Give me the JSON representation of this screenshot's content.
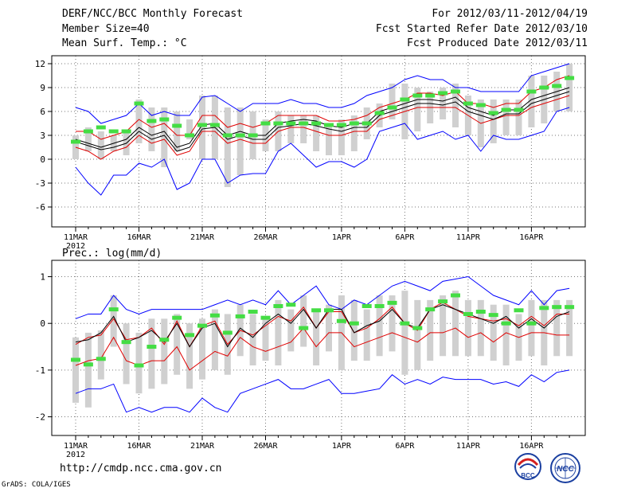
{
  "header": {
    "title": "DERF/NCC/BCC Monthly Forecast",
    "member_size": "Member Size=40",
    "variable": "Mean Surf. Temp.: °C",
    "period": "For 2012/03/11-2012/04/19",
    "started": "Fcst Started Refer Date 2012/03/10",
    "produced": "Fcst Produced Date 2012/03/11"
  },
  "footer": {
    "url": "http://cmdp.ncc.cma.gov.cn",
    "credit": "GrADS: COLA/IGES",
    "logo_bcc": "BCC",
    "logo_ncc": "NCC"
  },
  "colors": {
    "envelope": "#0000ff",
    "percentile": "#e00000",
    "mean": "#000000",
    "box": "#d0d0d0",
    "obs": "#44dd44",
    "grid": "#777777"
  },
  "chart_data": [
    {
      "type": "line",
      "title": "Mean Surf. Temp.: °C",
      "x_tick_labels": [
        "11MAR",
        "16MAR",
        "21MAR",
        "26MAR",
        "1APR",
        "6APR",
        "11APR",
        "16APR"
      ],
      "x_tick_days": [
        0,
        5,
        10,
        15,
        21,
        26,
        31,
        36
      ],
      "year_label": "2012",
      "ylim": [
        -8.5,
        13
      ],
      "yticks": [
        12,
        9,
        6,
        3,
        0,
        -3,
        -6
      ],
      "ytick_labels": [
        "12",
        "9",
        "6",
        "3",
        "0",
        "-3",
        "-6"
      ],
      "days": 40,
      "series": [
        {
          "name": "max",
          "values": [
            6.5,
            6,
            4.5,
            5,
            5.5,
            7,
            5.5,
            6,
            5.5,
            5.5,
            7.8,
            8,
            7,
            6,
            7,
            7,
            7,
            7.5,
            7,
            7,
            6.5,
            6.5,
            7,
            8,
            8.5,
            9,
            10,
            10.5,
            10,
            10,
            9,
            9,
            8.5,
            8.5,
            8.5,
            8.5,
            10.5,
            11,
            11.5,
            12
          ]
        },
        {
          "name": "p90",
          "values": [
            3.5,
            3.5,
            2.5,
            3,
            3.5,
            5,
            4,
            4.5,
            3,
            3,
            5.5,
            5.5,
            4,
            4.5,
            4,
            4.5,
            5.5,
            5.5,
            5.5,
            5.5,
            4.8,
            4.8,
            5,
            5.5,
            6.5,
            7,
            7.5,
            8.3,
            8.3,
            8,
            8.5,
            7,
            7,
            6.5,
            7,
            7,
            8.5,
            9,
            10,
            10.5
          ]
        },
        {
          "name": "mean",
          "values": [
            2.5,
            2,
            1.5,
            2,
            2.5,
            4,
            3,
            3.5,
            1.5,
            2,
            4.3,
            4.5,
            3,
            3.5,
            3,
            3,
            4.5,
            4.8,
            5,
            4.8,
            4.2,
            4,
            4.5,
            4.5,
            6,
            6.5,
            7,
            7.5,
            7.5,
            7.3,
            7.8,
            6.5,
            6,
            5.5,
            6.2,
            6.2,
            7.5,
            8,
            8.5,
            9
          ]
        },
        {
          "name": "mean2",
          "values": [
            2.2,
            1.7,
            1.2,
            1.5,
            2,
            3.5,
            2.5,
            3,
            1,
            1.5,
            3.8,
            4,
            2.5,
            3,
            2.5,
            2.5,
            4,
            4.2,
            4.5,
            4.2,
            3.8,
            3.5,
            4,
            4,
            5.5,
            6,
            6.5,
            7,
            7,
            6.8,
            7.2,
            6,
            5.5,
            5,
            5.7,
            5.7,
            7,
            7.5,
            8,
            8.5
          ]
        },
        {
          "name": "p10",
          "values": [
            1.5,
            1,
            0,
            1,
            1.5,
            3,
            2,
            2.5,
            0.5,
            1,
            3.5,
            3.5,
            2,
            2.5,
            2,
            2,
            3.5,
            4,
            4,
            3.5,
            3,
            3,
            3.5,
            3.5,
            5,
            5.5,
            6,
            6.5,
            6.5,
            6.5,
            6.5,
            5.5,
            4.5,
            5,
            5.5,
            5.5,
            6.5,
            7,
            7.5,
            8
          ]
        },
        {
          "name": "min",
          "values": [
            -1,
            -3,
            -4.5,
            -2,
            -2,
            -0.5,
            -1,
            0,
            -3.8,
            -3,
            0,
            0,
            -3,
            -2,
            -1.8,
            -1.8,
            1,
            2,
            0.5,
            -1,
            -0.3,
            -0.3,
            -1,
            0,
            3.5,
            4,
            4.5,
            2.5,
            3,
            3.5,
            2.5,
            3,
            1,
            3,
            2.5,
            2.5,
            3,
            3.5,
            6,
            6.5
          ]
        },
        {
          "name": "box_top",
          "values": [
            3,
            4,
            3.5,
            3,
            3.5,
            7.5,
            6.5,
            6.5,
            6,
            5,
            8,
            8,
            6.5,
            6.5,
            6,
            5,
            6,
            5.5,
            5.5,
            5.5,
            4.5,
            5,
            5.5,
            6.5,
            7,
            9.5,
            9.5,
            9,
            8.5,
            9,
            9.5,
            8,
            7.5,
            7.5,
            7.5,
            7.5,
            10.5,
            10.5,
            11,
            12
          ]
        },
        {
          "name": "box_bottom",
          "values": [
            0,
            1,
            0,
            1,
            0.5,
            2,
            1,
            -1,
            1,
            2.5,
            0,
            0,
            -3.5,
            -2,
            0,
            1,
            1,
            2,
            2,
            1,
            0.5,
            0.5,
            1,
            2.5,
            4,
            5,
            2.5,
            3.5,
            4.5,
            5,
            4,
            3,
            1.5,
            2,
            3,
            3,
            4,
            4.5,
            6,
            6
          ]
        },
        {
          "name": "obs",
          "values": [
            2.2,
            3.5,
            4,
            3.5,
            3.5,
            7,
            4.8,
            5,
            4.2,
            3,
            4.3,
            4.3,
            3,
            3,
            3,
            4.5,
            4.5,
            4.5,
            4.5,
            4.5,
            4.3,
            4.3,
            4.5,
            4.5,
            5.8,
            6.5,
            7.5,
            8,
            8,
            8.3,
            8.5,
            7,
            6.8,
            5.8,
            6.2,
            6.2,
            8.5,
            9,
            9.2,
            10.2
          ]
        }
      ]
    },
    {
      "type": "line",
      "title": "Prec.: log(mm/d)",
      "x_tick_labels": [
        "11MAR",
        "16MAR",
        "21MAR",
        "26MAR",
        "1APR",
        "6APR",
        "11APR",
        "16APR"
      ],
      "x_tick_days": [
        0,
        5,
        10,
        15,
        21,
        26,
        31,
        36
      ],
      "year_label": "2012",
      "ylim": [
        -2.4,
        1.35
      ],
      "yticks": [
        1,
        0,
        -1,
        -2
      ],
      "ytick_labels": [
        "1",
        "0",
        "-1",
        "-2"
      ],
      "days": 40,
      "series": [
        {
          "name": "max",
          "values": [
            0.1,
            0.2,
            0.2,
            0.6,
            0.3,
            0.2,
            0.3,
            0.3,
            0.3,
            0.3,
            0.3,
            0.4,
            0.5,
            0.4,
            0.5,
            0.4,
            0.7,
            0.4,
            0.6,
            0.8,
            0.4,
            0.3,
            0.5,
            0.4,
            0.6,
            0.8,
            0.9,
            0.8,
            0.7,
            0.9,
            0.95,
            1,
            0.8,
            0.6,
            0.5,
            0.4,
            0.7,
            0.4,
            0.7,
            0.75
          ]
        },
        {
          "name": "mean",
          "values": [
            -0.4,
            -0.35,
            -0.2,
            0.15,
            -0.4,
            -0.3,
            -0.15,
            -0.4,
            0,
            -0.5,
            -0.1,
            0,
            -0.5,
            -0.1,
            -0.3,
            0,
            0.2,
            0,
            0.3,
            -0.1,
            0.3,
            0.3,
            -0.2,
            -0.05,
            0.05,
            0.3,
            0,
            -0.1,
            0.3,
            0.4,
            0.3,
            0.2,
            0.1,
            0,
            0.15,
            -0.1,
            0.1,
            -0.1,
            0.15,
            0.25
          ]
        },
        {
          "name": "mean2",
          "values": [
            -0.45,
            -0.3,
            -0.25,
            0.1,
            -0.35,
            -0.3,
            -0.1,
            -0.45,
            0.05,
            -0.5,
            -0.05,
            0.05,
            -0.45,
            -0.15,
            -0.25,
            -0.05,
            0.15,
            0.05,
            0.35,
            -0.1,
            0.25,
            0.25,
            -0.2,
            -0.1,
            0.1,
            0.35,
            0,
            -0.15,
            0.3,
            0.45,
            0.3,
            0.15,
            0.1,
            0.05,
            0.1,
            -0.05,
            0.15,
            -0.05,
            0.2,
            0.2
          ]
        },
        {
          "name": "p10",
          "values": [
            -0.9,
            -0.8,
            -0.75,
            -0.3,
            -0.8,
            -0.9,
            -0.8,
            -0.8,
            -0.5,
            -1,
            -0.8,
            -0.6,
            -0.7,
            -0.3,
            -0.5,
            -0.6,
            -0.5,
            -0.4,
            -0.1,
            -0.5,
            -0.2,
            -0.2,
            -0.5,
            -0.4,
            -0.3,
            -0.2,
            -0.3,
            -0.4,
            -0.2,
            -0.2,
            -0.1,
            -0.3,
            -0.2,
            -0.4,
            -0.2,
            -0.3,
            -0.2,
            -0.2,
            -0.25,
            -0.25
          ]
        },
        {
          "name": "min",
          "values": [
            -1.5,
            -1.4,
            -1.4,
            -1.3,
            -1.9,
            -1.8,
            -1.9,
            -1.8,
            -1.8,
            -1.9,
            -1.6,
            -1.8,
            -1.9,
            -1.5,
            -1.4,
            -1.3,
            -1.2,
            -1.4,
            -1.4,
            -1.3,
            -1.2,
            -1.5,
            -1.5,
            -1.45,
            -1.4,
            -1.1,
            -1.3,
            -1.2,
            -1.3,
            -1.15,
            -1.2,
            -1.2,
            -1.2,
            -1.3,
            -1.25,
            -1.35,
            -1.1,
            -1.25,
            -1.05,
            -1.0
          ]
        },
        {
          "name": "box_top",
          "values": [
            -0.3,
            -0.2,
            -0.15,
            0.6,
            0,
            -0.2,
            0.1,
            0.1,
            0.2,
            0,
            0.1,
            0.3,
            0.2,
            0.4,
            0.2,
            0.1,
            0.5,
            0.3,
            0.6,
            0.3,
            0.4,
            0.6,
            0.5,
            0.3,
            0.6,
            0.6,
            0.7,
            0.5,
            0.5,
            0.6,
            0.7,
            0.5,
            0.5,
            0.4,
            0.4,
            0.2,
            0.5,
            0.5,
            0.5,
            0.5
          ]
        },
        {
          "name": "box_bottom",
          "values": [
            -1.7,
            -1.8,
            -1.2,
            -0.5,
            -1.3,
            -1.5,
            -1.4,
            -1.3,
            -1.1,
            -1.4,
            -1.2,
            -1.0,
            -1.1,
            -0.7,
            -0.9,
            -0.8,
            -0.9,
            -0.6,
            -0.5,
            -0.9,
            -0.6,
            -1.0,
            -0.8,
            -0.8,
            -0.7,
            -0.6,
            -1.1,
            -1.0,
            -0.8,
            -0.7,
            -0.7,
            -0.7,
            -0.7,
            -0.8,
            -0.9,
            -0.8,
            -0.7,
            -0.9,
            -0.7,
            -0.7
          ]
        },
        {
          "name": "obs",
          "values": [
            -0.78,
            -0.88,
            -0.76,
            0.3,
            -0.4,
            -0.9,
            -0.5,
            -0.35,
            0.12,
            -0.25,
            -0.05,
            0.17,
            -0.2,
            0.15,
            0.25,
            0.12,
            0.37,
            0.4,
            -0.1,
            0.28,
            0.28,
            0.05,
            0.0,
            0.37,
            0.37,
            0.44,
            0.0,
            -0.1,
            0.3,
            0.47,
            0.6,
            0.2,
            0.25,
            0.18,
            0.0,
            0.28,
            0.0,
            0.33,
            0.35,
            0.35
          ]
        }
      ]
    }
  ]
}
